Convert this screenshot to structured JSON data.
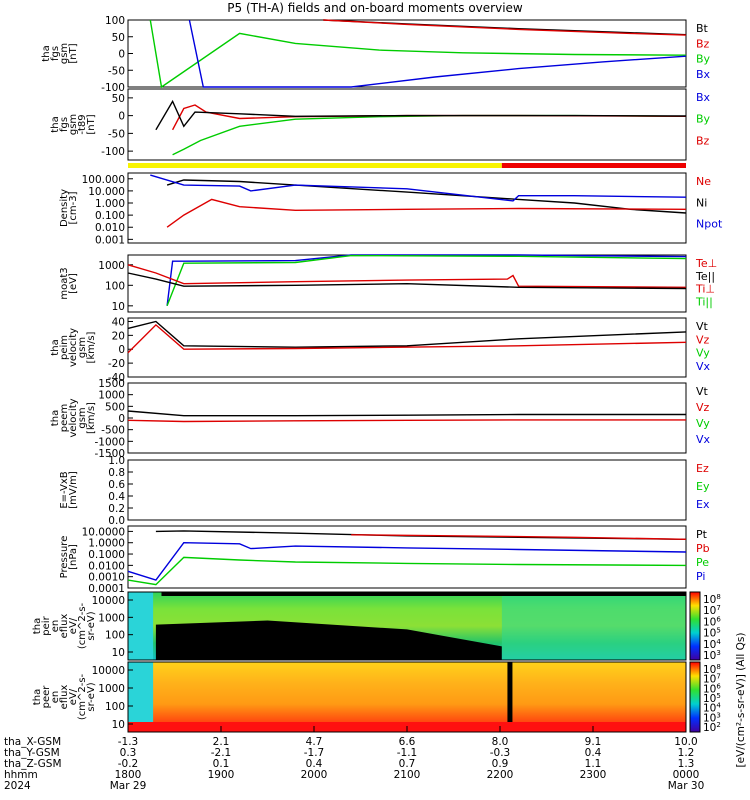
{
  "title": "P5 (TH-A) fields and on-board moments overview",
  "colors": {
    "black": "#000000",
    "red": "#dd0000",
    "green": "#00cc00",
    "blue": "#0000dd",
    "yellow": "#f8f400",
    "barred": "#ee0000"
  },
  "chart_data": [
    {
      "id": "fgs",
      "type": "line",
      "ylabel": [
        "tha",
        "fgs",
        "gsm",
        "[nT]"
      ],
      "ylim": [
        -100,
        100
      ],
      "yticks": [
        "100",
        "50",
        "0",
        "-50",
        "-100"
      ],
      "legend": [
        {
          "name": "Bt",
          "color": "black"
        },
        {
          "name": "Bz",
          "color": "red"
        },
        {
          "name": "By",
          "color": "green"
        },
        {
          "name": "Bx",
          "color": "blue"
        }
      ],
      "series": [
        {
          "name": "Bt",
          "color": "black",
          "x": [
            0.35,
            0.5,
            0.7,
            0.9,
            1.0
          ],
          "y": [
            100,
            88,
            74,
            62,
            56
          ]
        },
        {
          "name": "Bz",
          "color": "red",
          "x": [
            0.35,
            0.5,
            0.7,
            0.9,
            1.0
          ],
          "y": [
            100,
            87,
            72,
            60,
            55
          ]
        },
        {
          "name": "By",
          "color": "green",
          "x": [
            0.04,
            0.06,
            0.2,
            0.3,
            0.45,
            0.6,
            0.8,
            1.0
          ],
          "y": [
            100,
            -100,
            60,
            30,
            10,
            2,
            -3,
            -5
          ]
        },
        {
          "name": "Bx",
          "color": "blue",
          "x": [
            0.11,
            0.135,
            0.4,
            0.55,
            0.7,
            0.85,
            1.0
          ],
          "y": [
            100,
            -100,
            -100,
            -70,
            -45,
            -25,
            -8
          ]
        }
      ]
    },
    {
      "id": "fgs_d",
      "type": "line",
      "ylabel": [
        "tha",
        "fgs",
        "gsm",
        "-t89",
        "[nT]"
      ],
      "ylim": [
        -125,
        75
      ],
      "yticks": [
        "50",
        "0",
        "-50",
        "-100"
      ],
      "legend": [
        {
          "name": "Bx",
          "color": "blue"
        },
        {
          "name": "By",
          "color": "green"
        },
        {
          "name": "Bz",
          "color": "red"
        }
      ],
      "series": [
        {
          "name": "By",
          "color": "green",
          "x": [
            0.08,
            0.1,
            0.13,
            0.2,
            0.3,
            0.45,
            0.6,
            0.8,
            1.0
          ],
          "y": [
            -110,
            -95,
            -70,
            -30,
            -10,
            -3,
            0,
            0,
            -2
          ]
        },
        {
          "name": "Bz",
          "color": "red",
          "x": [
            0.08,
            0.1,
            0.12,
            0.14,
            0.2,
            0.3,
            0.5,
            0.7,
            1.0
          ],
          "y": [
            -40,
            20,
            30,
            10,
            -8,
            -3,
            0,
            0,
            -2
          ]
        },
        {
          "name": "Bx",
          "color": "black",
          "x": [
            0.05,
            0.08,
            0.1,
            0.12,
            0.2,
            0.3,
            0.5,
            0.8,
            1.0
          ],
          "y": [
            -40,
            40,
            -30,
            10,
            5,
            -2,
            0,
            0,
            -1
          ]
        }
      ]
    },
    {
      "id": "density",
      "type": "line",
      "ylabel": [
        "Density",
        "[cm-3]"
      ],
      "scale": "log",
      "ylim": [
        0.0005,
        300
      ],
      "yticks": [
        "100.000",
        "10.000",
        "1.000",
        "0.100",
        "0.010",
        "0.001"
      ],
      "legend": [
        {
          "name": "Ne",
          "color": "red"
        },
        {
          "name": "Ni",
          "color": "black"
        },
        {
          "name": "Npot",
          "color": "blue"
        }
      ],
      "series": [
        {
          "name": "Ni",
          "color": "black",
          "x": [
            0.07,
            0.1,
            0.2,
            0.3,
            0.5,
            0.7,
            0.8,
            0.9,
            1.0
          ],
          "y": [
            30,
            80,
            60,
            30,
            8,
            2,
            1,
            0.3,
            0.15
          ]
        },
        {
          "name": "Ne",
          "color": "red",
          "x": [
            0.07,
            0.1,
            0.15,
            0.2,
            0.3,
            0.5,
            0.7,
            1.0
          ],
          "y": [
            0.01,
            0.1,
            2,
            0.5,
            0.25,
            0.3,
            0.35,
            0.3
          ]
        },
        {
          "name": "Npot",
          "color": "blue",
          "x": [
            0.04,
            0.1,
            0.2,
            0.22,
            0.3,
            0.5,
            0.69,
            0.7,
            0.8,
            1.0
          ],
          "y": [
            200,
            30,
            25,
            10,
            30,
            15,
            1.5,
            4,
            4,
            3
          ]
        }
      ]
    },
    {
      "id": "temp",
      "type": "line",
      "ylabel": [
        "moat3",
        "[eV]"
      ],
      "scale": "log",
      "ylim": [
        5,
        3000
      ],
      "yticks": [
        "1000",
        "100",
        "10"
      ],
      "legend": [
        {
          "name": "Te⊥",
          "color": "red"
        },
        {
          "name": "Te||",
          "color": "black"
        },
        {
          "name": "Ti⊥",
          "color": "red"
        },
        {
          "name": "Ti||",
          "color": "green"
        }
      ],
      "series": [
        {
          "name": "Ti⊥",
          "color": "blue",
          "x": [
            0.07,
            0.08,
            0.1,
            0.3,
            0.4,
            0.7,
            1.0
          ],
          "y": [
            10,
            1500,
            1500,
            1600,
            3000,
            3000,
            2500
          ]
        },
        {
          "name": "Ti||",
          "color": "green",
          "x": [
            0.07,
            0.1,
            0.3,
            0.4,
            0.7,
            1.0
          ],
          "y": [
            10,
            1200,
            1300,
            2800,
            2600,
            2000
          ]
        },
        {
          "name": "Te⊥",
          "color": "red",
          "x": [
            0.0,
            0.05,
            0.1,
            0.3,
            0.5,
            0.68,
            0.69,
            0.7,
            1.0
          ],
          "y": [
            1000,
            400,
            120,
            150,
            180,
            200,
            300,
            90,
            80
          ]
        },
        {
          "name": "Te||",
          "color": "black",
          "x": [
            0.0,
            0.05,
            0.1,
            0.3,
            0.5,
            0.7,
            1.0
          ],
          "y": [
            400,
            200,
            90,
            100,
            120,
            80,
            70
          ]
        }
      ]
    },
    {
      "id": "velocity",
      "type": "line",
      "ylabel": [
        "tha",
        "peim",
        "velocity",
        "gsm",
        "[km/s]"
      ],
      "ylim": [
        -40,
        45
      ],
      "yticks": [
        "40",
        "20",
        "0",
        "-20",
        "-40"
      ],
      "legend": [
        {
          "name": "Vt",
          "color": "black"
        },
        {
          "name": "Vz",
          "color": "red"
        },
        {
          "name": "Vy",
          "color": "green"
        },
        {
          "name": "Vx",
          "color": "blue"
        }
      ],
      "series": [
        {
          "name": "Vt",
          "color": "black",
          "x": [
            0.0,
            0.05,
            0.1,
            0.3,
            0.5,
            0.7,
            1.0
          ],
          "y": [
            30,
            40,
            5,
            3,
            5,
            15,
            25
          ]
        },
        {
          "name": "Vz",
          "color": "red",
          "x": [
            0.0,
            0.05,
            0.1,
            0.3,
            0.7,
            1.0
          ],
          "y": [
            -5,
            35,
            0,
            1,
            5,
            10
          ]
        }
      ]
    },
    {
      "id": "velocity_e",
      "type": "line",
      "ylabel": [
        "tha",
        "peem",
        "velocity",
        "gsm",
        "[km/s]"
      ],
      "ylim": [
        -1500,
        1500
      ],
      "yticks": [
        "1500",
        "1000",
        "500",
        "0",
        "-500",
        "-1000",
        "-1500"
      ],
      "legend": [
        {
          "name": "Vt",
          "color": "black"
        },
        {
          "name": "Vz",
          "color": "red"
        },
        {
          "name": "Vy",
          "color": "green"
        },
        {
          "name": "Vx",
          "color": "blue"
        }
      ],
      "series": [
        {
          "name": "Vt",
          "color": "black",
          "x": [
            0.0,
            0.1,
            0.3,
            0.5,
            0.7,
            1.0
          ],
          "y": [
            300,
            100,
            100,
            120,
            150,
            150
          ]
        },
        {
          "name": "Vz",
          "color": "red",
          "x": [
            0.0,
            0.1,
            0.3,
            0.5,
            0.7,
            1.0
          ],
          "y": [
            -100,
            -150,
            -120,
            -100,
            -80,
            -80
          ]
        }
      ]
    },
    {
      "id": "efield",
      "type": "line",
      "ylabel": [
        "E=-VxB",
        "[mV/m]"
      ],
      "ylim": [
        0,
        1
      ],
      "yticks": [
        "1.0",
        "0.8",
        "0.6",
        "0.4",
        "0.2",
        "0.0"
      ],
      "legend": [
        {
          "name": "Ez",
          "color": "red"
        },
        {
          "name": "Ey",
          "color": "green"
        },
        {
          "name": "Ex",
          "color": "blue"
        }
      ],
      "series": []
    },
    {
      "id": "pressure",
      "type": "line",
      "ylabel": [
        "Pressure",
        "[nPa]"
      ],
      "scale": "log",
      "ylim": [
        0.0001,
        30
      ],
      "yticks": [
        "10.0000",
        "1.0000",
        "0.1000",
        "0.0100",
        "0.0010",
        "0.0001"
      ],
      "legend": [
        {
          "name": "Pt",
          "color": "black"
        },
        {
          "name": "Pb",
          "color": "red"
        },
        {
          "name": "Pe",
          "color": "green"
        },
        {
          "name": "Pi",
          "color": "blue"
        }
      ],
      "series": [
        {
          "name": "Pt",
          "color": "black",
          "x": [
            0.05,
            0.1,
            0.3,
            0.5,
            0.7,
            1.0
          ],
          "y": [
            10,
            11,
            7,
            4,
            3,
            2
          ]
        },
        {
          "name": "Pb",
          "color": "red",
          "x": [
            0.4,
            0.6,
            0.8,
            1.0
          ],
          "y": [
            5,
            4,
            3,
            2
          ]
        },
        {
          "name": "Pi",
          "color": "blue",
          "x": [
            0.0,
            0.05,
            0.1,
            0.2,
            0.22,
            0.3,
            0.5,
            0.7,
            1.0
          ],
          "y": [
            0.003,
            0.0005,
            1,
            0.8,
            0.3,
            0.5,
            0.35,
            0.25,
            0.15
          ]
        },
        {
          "name": "Pe",
          "color": "green",
          "x": [
            0.0,
            0.05,
            0.1,
            0.2,
            0.3,
            0.5,
            0.7,
            1.0
          ],
          "y": [
            0.0005,
            0.0002,
            0.05,
            0.03,
            0.02,
            0.015,
            0.012,
            0.01
          ]
        }
      ]
    },
    {
      "id": "ion_spec",
      "type": "heatmap",
      "ylabel": [
        "tha",
        "peir",
        "en",
        "eflux",
        "eV/",
        "(cm^2-s-",
        "sr-eV)"
      ],
      "yticks": [
        "10000",
        "1000",
        "100",
        "10"
      ],
      "colorbar_ticks": [
        "10^8",
        "10^7",
        "10^6",
        "10^5",
        "10^4",
        "10^3"
      ]
    },
    {
      "id": "elec_spec",
      "type": "heatmap",
      "ylabel": [
        "tha",
        "peer",
        "en",
        "eflux",
        "eV/",
        "(cm^2-s-",
        "sr-eV)"
      ],
      "yticks": [
        "10000",
        "1000",
        "100",
        "10"
      ],
      "colorbar_ticks": [
        "10^8",
        "10^7",
        "10^6",
        "10^5",
        "10^4",
        "10^3",
        "10^2"
      ],
      "colorbar_label": "[eV/(cm²-s-sr-eV)] (All Qs)"
    }
  ],
  "xaxis": {
    "rows": [
      {
        "label": "tha_X-GSM",
        "values": [
          "-1.3",
          "2.1",
          "4.7",
          "6.6",
          "8.0",
          "9.1",
          "10.0"
        ]
      },
      {
        "label": "tha_Y-GSM",
        "values": [
          "0.3",
          "-2.1",
          "-1.7",
          "-1.1",
          "-0.3",
          "0.4",
          "1.2"
        ]
      },
      {
        "label": "tha_Z-GSM",
        "values": [
          "-0.2",
          "0.1",
          "0.4",
          "0.7",
          "0.9",
          "1.1",
          "1.3"
        ]
      },
      {
        "label": "hhmm",
        "values": [
          "1800",
          "1900",
          "2000",
          "2100",
          "2200",
          "2300",
          "0000"
        ]
      },
      {
        "label": "2024",
        "values": [
          "Mar 29",
          "",
          "",
          "",
          "",
          "",
          "Mar 30"
        ]
      }
    ]
  }
}
